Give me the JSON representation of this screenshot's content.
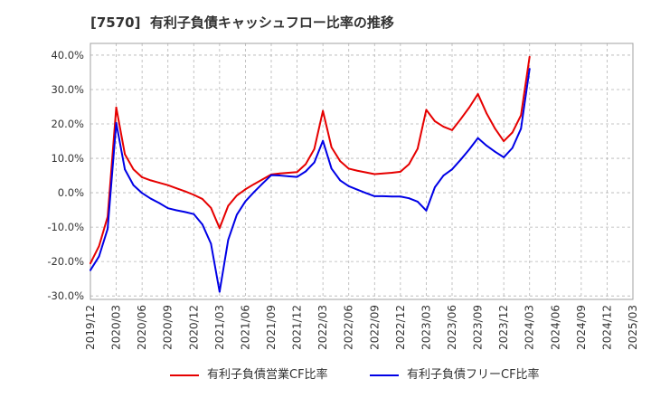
{
  "chart_data": {
    "type": "line",
    "title": "[7570]  有利子負債キャッシュフロー比率の推移",
    "x": [
      "2019/12",
      "2020/01",
      "2020/02",
      "2020/03",
      "2020/04",
      "2020/05",
      "2020/06",
      "2020/07",
      "2020/08",
      "2020/09",
      "2020/10",
      "2020/11",
      "2020/12",
      "2021/01",
      "2021/02",
      "2021/03",
      "2021/04",
      "2021/05",
      "2021/06",
      "2021/07",
      "2021/08",
      "2021/09",
      "2021/10",
      "2021/11",
      "2021/12",
      "2022/01",
      "2022/02",
      "2022/03",
      "2022/04",
      "2022/05",
      "2022/06",
      "2022/07",
      "2022/08",
      "2022/09",
      "2022/10",
      "2022/11",
      "2022/12",
      "2023/01",
      "2023/02",
      "2023/03",
      "2023/04",
      "2023/05",
      "2023/06",
      "2023/07",
      "2023/08",
      "2023/09",
      "2023/10",
      "2023/11",
      "2023/12",
      "2024/01",
      "2024/02",
      "2024/03"
    ],
    "series": [
      {
        "name": "有利子負債営業CF比率",
        "color": "#e60000",
        "values": [
          -20.5,
          -15.5,
          -7.0,
          24.8,
          11.2,
          6.8,
          4.5,
          3.6,
          2.9,
          2.2,
          1.3,
          0.4,
          -0.6,
          -1.8,
          -4.4,
          -10.3,
          -3.8,
          -0.8,
          1.0,
          2.5,
          3.9,
          5.3,
          5.6,
          5.8,
          6.0,
          8.3,
          12.7,
          23.8,
          13.2,
          9.2,
          7.0,
          6.4,
          5.9,
          5.4,
          5.6,
          5.8,
          6.1,
          8.3,
          12.8,
          24.1,
          20.8,
          19.2,
          18.2,
          21.4,
          24.8,
          28.7,
          23.1,
          18.6,
          15.0,
          17.5,
          22.5,
          39.5
        ]
      },
      {
        "name": "有利子負債フリーCF比率",
        "color": "#0000e6",
        "values": [
          -22.5,
          -18.5,
          -10.5,
          20.3,
          6.8,
          2.2,
          -0.1,
          -1.7,
          -3.0,
          -4.5,
          -5.1,
          -5.6,
          -6.2,
          -9.2,
          -14.8,
          -28.8,
          -13.7,
          -6.4,
          -2.5,
          0.2,
          2.7,
          5.1,
          5.0,
          4.8,
          4.6,
          6.2,
          8.8,
          15.1,
          7.0,
          3.6,
          1.9,
          0.9,
          -0.1,
          -1.0,
          -1.0,
          -1.1,
          -1.1,
          -1.6,
          -2.6,
          -5.2,
          1.6,
          5.0,
          6.8,
          9.6,
          12.6,
          15.9,
          13.7,
          11.9,
          10.3,
          13.0,
          18.6,
          36.0
        ]
      }
    ],
    "xlim": [
      "2019/12",
      "2025/03"
    ],
    "ylim": [
      -31,
      43.4
    ],
    "xtick_labels": [
      "2019/12",
      "2020/03",
      "2020/06",
      "2020/09",
      "2020/12",
      "2021/03",
      "2021/06",
      "2021/09",
      "2021/12",
      "2022/03",
      "2022/06",
      "2022/09",
      "2022/12",
      "2023/03",
      "2023/06",
      "2023/09",
      "2023/12",
      "2024/03",
      "2024/06",
      "2024/09",
      "2024/12",
      "2025/03"
    ],
    "yticks": [
      40,
      30,
      20,
      10,
      0,
      -10,
      -20,
      -30
    ],
    "ytick_labels": [
      "40.0%",
      "30.0%",
      "20.0%",
      "10.0%",
      "0.0%",
      "-10.0%",
      "-20.0%",
      "-30.0%"
    ],
    "grid": true,
    "legend": "bottom"
  }
}
